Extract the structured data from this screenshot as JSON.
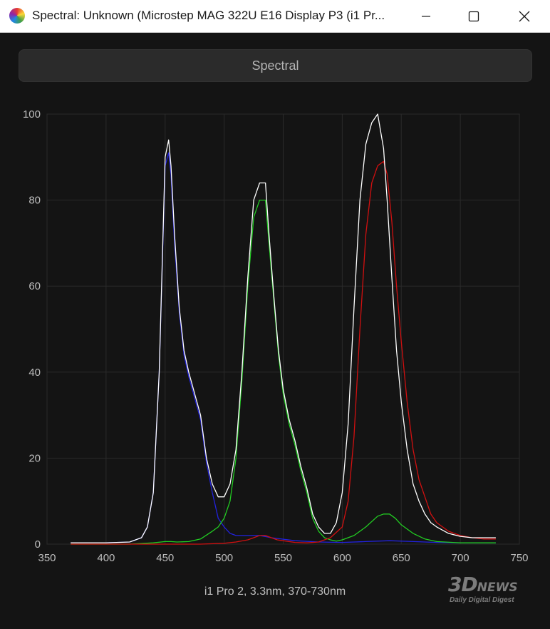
{
  "window": {
    "title": "Spectral: Unknown (Microstep MAG 322U E16 Display P3 (i1 Pr...",
    "controls": [
      "minimize",
      "maximize",
      "close"
    ]
  },
  "toolbar": {
    "spectral_label": "Spectral"
  },
  "caption": "i1 Pro 2, 3.3nm, 370-730nm",
  "watermark": {
    "logo": "3D",
    "logo_suffix": "NEWS",
    "tagline": "Daily Digital Digest"
  },
  "colors": {
    "background": "#141414",
    "grid": "#2a2a2a",
    "white": "#ffffff",
    "red": "#d01010",
    "green": "#22cc22",
    "blue": "#2222dd"
  },
  "chart_data": {
    "type": "line",
    "xlim": [
      350,
      750
    ],
    "ylim": [
      0,
      100
    ],
    "xticks": [
      350,
      400,
      450,
      500,
      550,
      600,
      650,
      700,
      750
    ],
    "yticks": [
      0,
      20,
      40,
      60,
      80,
      100
    ],
    "grid": true,
    "series": [
      {
        "color": "white",
        "x": [
          370,
          400,
          420,
          430,
          435,
          440,
          445,
          450,
          453,
          455,
          458,
          462,
          466,
          470,
          475,
          480,
          485,
          490,
          495,
          500,
          505,
          510,
          515,
          520,
          525,
          530,
          535,
          538,
          542,
          546,
          550,
          555,
          560,
          565,
          570,
          575,
          580,
          585,
          590,
          595,
          600,
          605,
          610,
          615,
          620,
          625,
          630,
          635,
          638,
          642,
          646,
          650,
          655,
          660,
          665,
          670,
          675,
          680,
          690,
          700,
          710,
          720,
          730
        ],
        "y": [
          0.3,
          0.3,
          0.5,
          1.5,
          4,
          12,
          40,
          90,
          94,
          88,
          72,
          55,
          45,
          40,
          35,
          30,
          20,
          14,
          11,
          11,
          14,
          22,
          40,
          62,
          80,
          84,
          84,
          72,
          58,
          45,
          36,
          29,
          24,
          18,
          13,
          7,
          4,
          2.5,
          2.5,
          5,
          12,
          28,
          55,
          80,
          93,
          98,
          100,
          92,
          80,
          62,
          45,
          33,
          22,
          14,
          10,
          7,
          5,
          4,
          2.5,
          1.8,
          1.5,
          1.5,
          1.5
        ]
      },
      {
        "color": "blue",
        "x": [
          370,
          400,
          420,
          430,
          435,
          440,
          445,
          450,
          453,
          455,
          458,
          462,
          466,
          470,
          475,
          480,
          485,
          490,
          495,
          500,
          505,
          510,
          520,
          530,
          540,
          560,
          580,
          600,
          620,
          640,
          660,
          680,
          700,
          730
        ],
        "y": [
          0.3,
          0.3,
          0.5,
          1.5,
          4,
          12,
          40,
          88,
          91,
          86,
          70,
          54,
          44,
          39,
          34,
          29,
          19,
          12,
          6,
          4,
          2.5,
          2,
          2,
          2,
          1.5,
          0.8,
          0.5,
          0.4,
          0.6,
          0.8,
          0.6,
          0.4,
          0.3,
          0.3
        ]
      },
      {
        "color": "green",
        "x": [
          370,
          420,
          440,
          450,
          455,
          460,
          470,
          480,
          490,
          495,
          500,
          505,
          510,
          515,
          520,
          525,
          530,
          535,
          538,
          542,
          546,
          550,
          555,
          560,
          565,
          570,
          575,
          580,
          585,
          590,
          595,
          600,
          610,
          620,
          630,
          635,
          640,
          645,
          650,
          660,
          670,
          680,
          700,
          730
        ],
        "y": [
          0,
          0,
          0.3,
          0.6,
          0.6,
          0.5,
          0.6,
          1.2,
          3,
          4,
          6,
          10,
          20,
          38,
          60,
          76,
          80,
          80,
          70,
          57,
          44,
          35,
          28,
          23,
          17,
          12,
          6,
          3,
          1.5,
          1,
          0.7,
          1,
          2,
          4,
          6.5,
          7,
          7,
          6,
          4.5,
          2.5,
          1.2,
          0.6,
          0.3,
          0.3
        ]
      },
      {
        "color": "red",
        "x": [
          370,
          480,
          500,
          510,
          520,
          525,
          530,
          535,
          540,
          545,
          550,
          560,
          570,
          580,
          590,
          600,
          605,
          610,
          615,
          620,
          625,
          630,
          635,
          638,
          642,
          646,
          650,
          655,
          660,
          665,
          670,
          675,
          680,
          690,
          700,
          710,
          720,
          730
        ],
        "y": [
          0,
          0,
          0.2,
          0.5,
          1,
          1.5,
          2,
          2,
          1.5,
          1,
          0.8,
          0.4,
          0.3,
          0.5,
          1.5,
          4,
          10,
          25,
          50,
          72,
          84,
          88,
          89,
          86,
          75,
          60,
          47,
          33,
          22,
          15,
          11,
          7,
          5,
          3,
          2,
          1.5,
          1.2,
          1.2
        ]
      }
    ]
  }
}
